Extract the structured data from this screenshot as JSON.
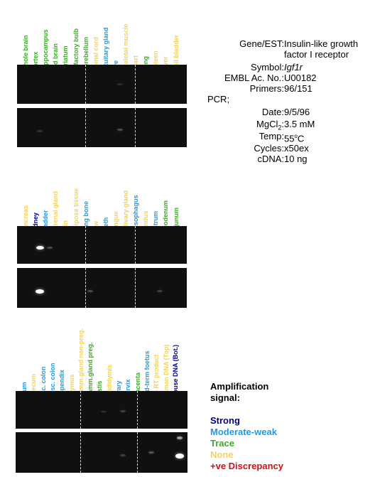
{
  "colors": {
    "strong": "#000080",
    "moderate": "#1e9be0",
    "trace": "#3caa28",
    "none": "#f4d257",
    "discrepancy": "#c8141e"
  },
  "panel1": {
    "lanes": [
      {
        "label": "Whole brain",
        "level": "trace"
      },
      {
        "label": "Cortex",
        "level": "trace"
      },
      {
        "label": "Hippocampus",
        "level": "trace"
      },
      {
        "label": "Mid brain",
        "level": "trace"
      },
      {
        "label": "Striatum",
        "level": "trace"
      },
      {
        "label": "Olfactory bulb",
        "level": "trace"
      },
      {
        "label": "Cerebellum",
        "level": "trace"
      },
      {
        "label": "Spinal cord",
        "level": "none"
      },
      {
        "label": "Pituitary gland",
        "level": "moderate"
      },
      {
        "label": "Eye",
        "level": "moderate"
      },
      {
        "label": "Skeletal muscle",
        "level": "none"
      },
      {
        "label": "Heart",
        "level": "none"
      },
      {
        "label": "Lung",
        "level": "trace"
      },
      {
        "label": "Spleen",
        "level": "none"
      },
      {
        "label": "Liver",
        "level": "none"
      },
      {
        "label": "Gall bladder",
        "level": "none"
      }
    ]
  },
  "panel2": {
    "lanes": [
      {
        "label": "Pancreas",
        "level": "none"
      },
      {
        "label": "Kidney",
        "level": "strong"
      },
      {
        "label": "Bladder",
        "level": "moderate"
      },
      {
        "label": "Adrenal gland",
        "level": "none"
      },
      {
        "label": "Skin",
        "level": "none"
      },
      {
        "label": "Adipose tissue",
        "level": "none"
      },
      {
        "label": "Long bone",
        "level": "moderate"
      },
      {
        "label": "Paw",
        "level": "none"
      },
      {
        "label": "Teeth",
        "level": "moderate"
      },
      {
        "label": "Tongue",
        "level": "none"
      },
      {
        "label": "Salivary gland",
        "level": "none"
      },
      {
        "label": "Oesophagus",
        "level": "moderate"
      },
      {
        "label": "Fundus",
        "level": "none"
      },
      {
        "label": "Antrum",
        "level": "moderate"
      },
      {
        "label": "Duodenum",
        "level": "trace"
      },
      {
        "label": "Jejunum",
        "level": "trace"
      }
    ]
  },
  "panel3": {
    "lanes": [
      {
        "label": "Ileum",
        "level": "moderate"
      },
      {
        "label": "Caecum",
        "level": "none"
      },
      {
        "label": "Asc. colon",
        "level": "moderate"
      },
      {
        "label": "Desc. colon",
        "level": "moderate"
      },
      {
        "label": "Appendix",
        "level": "moderate"
      },
      {
        "label": "Thymus",
        "level": "none"
      },
      {
        "label": "Mamm.gland non-preg.",
        "level": "none"
      },
      {
        "label": "Mamm.gland preg.",
        "level": "trace"
      },
      {
        "label": "Testis",
        "level": "trace"
      },
      {
        "label": "Epididymis",
        "level": "none"
      },
      {
        "label": "Ovary",
        "level": "moderate"
      },
      {
        "label": "Cervix",
        "level": "moderate"
      },
      {
        "label": "Placenta",
        "level": "trace"
      },
      {
        "label": "Mid-term foetus",
        "level": "moderate"
      },
      {
        "label": "No RT product",
        "level": "none"
      },
      {
        "label": "Human DNA (Top)",
        "level": "none"
      },
      {
        "label": "Mouse DNA (Bot.)",
        "level": "strong"
      }
    ]
  },
  "info": {
    "gene_key": "Gene/EST:",
    "gene_line1": "Insulin-like growth",
    "gene_line2": "factor I receptor",
    "symbol_key": "Symbol:",
    "symbol_value": "Igf1r",
    "embl_key": "EMBL Ac. No.:",
    "embl_value": "U00182",
    "primers_key": "Primers:",
    "primers_value": "96/151",
    "pcr_label": "PCR;",
    "date_key": "Date:",
    "date_value": "9/5/96",
    "mgcl_key_prefix": "MgCl",
    "mgcl_key_sub": "2",
    "mgcl_key_suffix": ":",
    "mgcl_value": "3.5 mM",
    "temp_key": "Temp:",
    "temp_value_num": "55",
    "temp_value_sup": "o",
    "temp_value_unit": "C",
    "cycles_key": "Cycles:",
    "cycles_value": "x50ex",
    "cdna_key": "cDNA:",
    "cdna_value": "10 ng"
  },
  "legend": {
    "title_line1": "Amplification",
    "title_line2": "signal:",
    "strong": "Strong",
    "moderate": "Moderate-weak",
    "trace": "Trace",
    "none": "None",
    "discrepancy": "+ve Discrepancy"
  }
}
